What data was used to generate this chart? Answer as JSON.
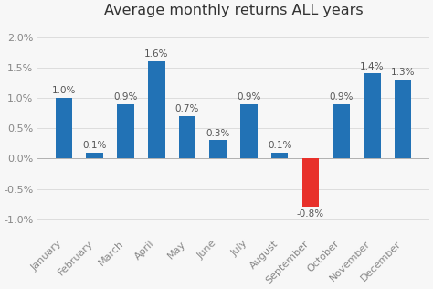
{
  "title": "Average monthly returns ALL years",
  "categories": [
    "January",
    "February",
    "March",
    "April",
    "May",
    "June",
    "July",
    "August",
    "September",
    "October",
    "November",
    "December"
  ],
  "values": [
    1.0,
    0.1,
    0.9,
    1.6,
    0.7,
    0.3,
    0.9,
    0.1,
    -0.8,
    0.9,
    1.4,
    1.3
  ],
  "bar_colors": [
    "#2272b5",
    "#2272b5",
    "#2272b5",
    "#2272b5",
    "#2272b5",
    "#2272b5",
    "#2272b5",
    "#2272b5",
    "#e8302a",
    "#2272b5",
    "#2272b5",
    "#2272b5"
  ],
  "ylim": [
    -1.25,
    2.2
  ],
  "yticks": [
    -1.0,
    -0.5,
    0.0,
    0.5,
    1.0,
    1.5,
    2.0
  ],
  "title_fontsize": 11.5,
  "label_fontsize": 7.5,
  "tick_fontsize": 8,
  "label_color": "#555555",
  "tick_color": "#888888",
  "background_color": "#f7f7f7",
  "grid_color": "#dddddd",
  "title_color": "#333333"
}
